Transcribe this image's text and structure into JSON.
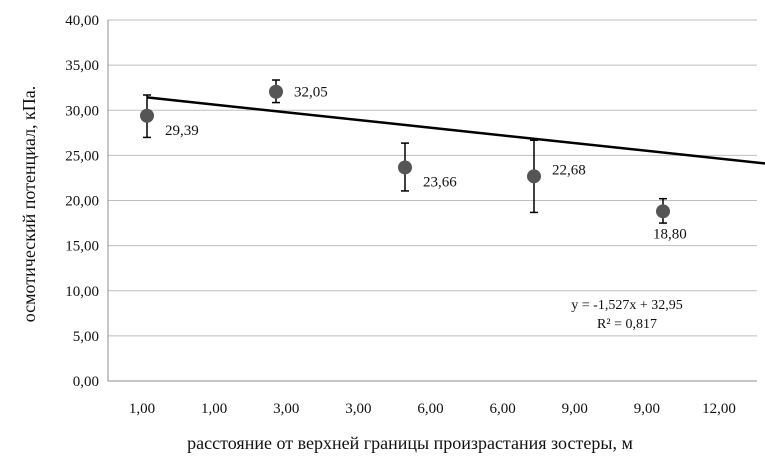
{
  "chart_data": {
    "type": "scatter",
    "xlabel": "расстояние от верхней границы произрастания зостеры, м",
    "ylabel": "осмотический потенциал, кПа.",
    "ylim": [
      0,
      40
    ],
    "yticks": [
      "0,00",
      "5,00",
      "10,00",
      "15,00",
      "20,00",
      "25,00",
      "30,00",
      "35,00",
      "40,00"
    ],
    "x_tick_labels": [
      "1,00",
      "1,00",
      "3,00",
      "3,00",
      "6,00",
      "6,00",
      "9,00",
      "9,00",
      "12,00"
    ],
    "grid": "horizontal",
    "colors": {
      "marker": "#555555",
      "line": "#000000",
      "grid": "#bfbfbf"
    },
    "points": [
      {
        "x": 1,
        "y": 29.39,
        "label": "29,39",
        "err_low": 2.4,
        "err_high": 2.3
      },
      {
        "x": 2,
        "y": 32.05,
        "label": "32,05",
        "err_low": 1.2,
        "err_high": 1.3
      },
      {
        "x": 3,
        "y": 23.66,
        "label": "23,66",
        "err_low": 2.6,
        "err_high": 2.7
      },
      {
        "x": 4,
        "y": 22.68,
        "label": "22,68",
        "err_low": 4.0,
        "err_high": 4.0
      },
      {
        "x": 5,
        "y": 18.8,
        "label": "18,80",
        "err_low": 1.3,
        "err_high": 1.4
      }
    ],
    "trendline": {
      "slope": -1.527,
      "intercept": 32.95,
      "x_start": 1,
      "x_end": 5.8,
      "equation": "y = -1,527x + 32,95",
      "r2": "R² = 0,817"
    }
  }
}
